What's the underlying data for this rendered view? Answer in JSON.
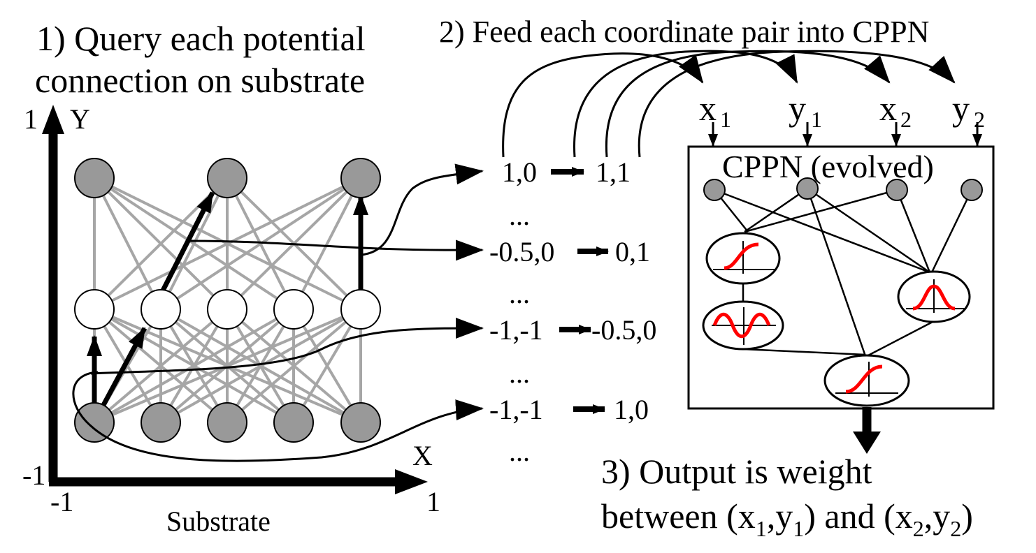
{
  "labels": {
    "step1_line1": "1) Query each potential",
    "step1_line2": "connection on substrate",
    "step2": "2) Feed each coordinate pair into CPPN",
    "step3_line1": "3) Output is weight",
    "step3_line2_a": "between (x",
    "step3_line2_sub1": "1",
    "step3_line2_b": ",y",
    "step3_line2_sub2": "1",
    "step3_line2_c": ") and (x",
    "step3_line2_sub3": "2",
    "step3_line2_d": ",y",
    "step3_line2_sub4": "2",
    "step3_line2_e": ")",
    "substrate": "Substrate",
    "cppn_box": "CPPN (evolved)"
  },
  "axes": {
    "y_label": "Y",
    "x_label": "X",
    "y_max": "1",
    "y_min": "-1",
    "x_min": "-1",
    "x_max": "1"
  },
  "inputs": [
    {
      "name": "x",
      "sub": "1"
    },
    {
      "name": "y",
      "sub": "1"
    },
    {
      "name": "x",
      "sub": "2"
    },
    {
      "name": "y",
      "sub": "2"
    }
  ],
  "pairs": [
    {
      "from": "1,0",
      "to": "1,1"
    },
    {
      "from": "-0.5,0",
      "to": "0,1"
    },
    {
      "from": "-1,-1",
      "to": "-0.5,0"
    },
    {
      "from": "-1,-1",
      "to": "1,0"
    }
  ],
  "ellipsis": "...",
  "colors": {
    "node_gray": "#999999",
    "edge_gray": "#a6a6a6",
    "activation": "#ff0000"
  },
  "activation_icons": [
    "sigmoid-icon",
    "sine-icon",
    "gaussian-icon",
    "sigmoid-icon"
  ]
}
